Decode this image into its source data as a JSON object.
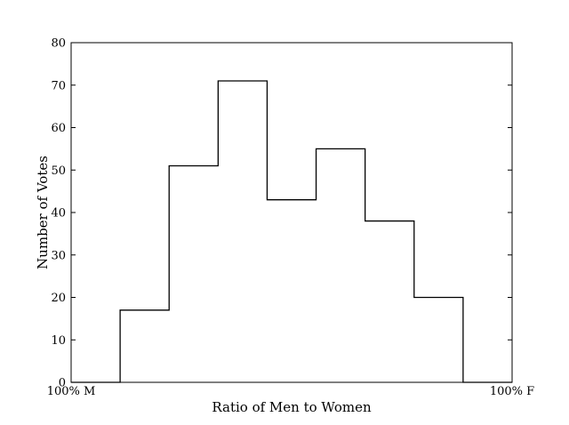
{
  "chart_data": {
    "type": "bar",
    "style": "step-histogram",
    "xlabel": "Ratio of Men to Women",
    "ylabel": "Number of Votes",
    "xlim": [
      0,
      9
    ],
    "ylim": [
      0,
      80
    ],
    "x_tick_labels": [
      {
        "x": 0,
        "label": "100% M"
      },
      {
        "x": 9,
        "label": "100% F"
      }
    ],
    "y_ticks": [
      0,
      10,
      20,
      30,
      40,
      50,
      60,
      70,
      80
    ],
    "bin_edges": [
      0,
      1,
      2,
      3,
      4,
      5,
      6,
      7,
      8,
      9
    ],
    "values": [
      0,
      17,
      51,
      71,
      43,
      55,
      38,
      20,
      0
    ],
    "grid": false,
    "line_color": "#000000"
  }
}
